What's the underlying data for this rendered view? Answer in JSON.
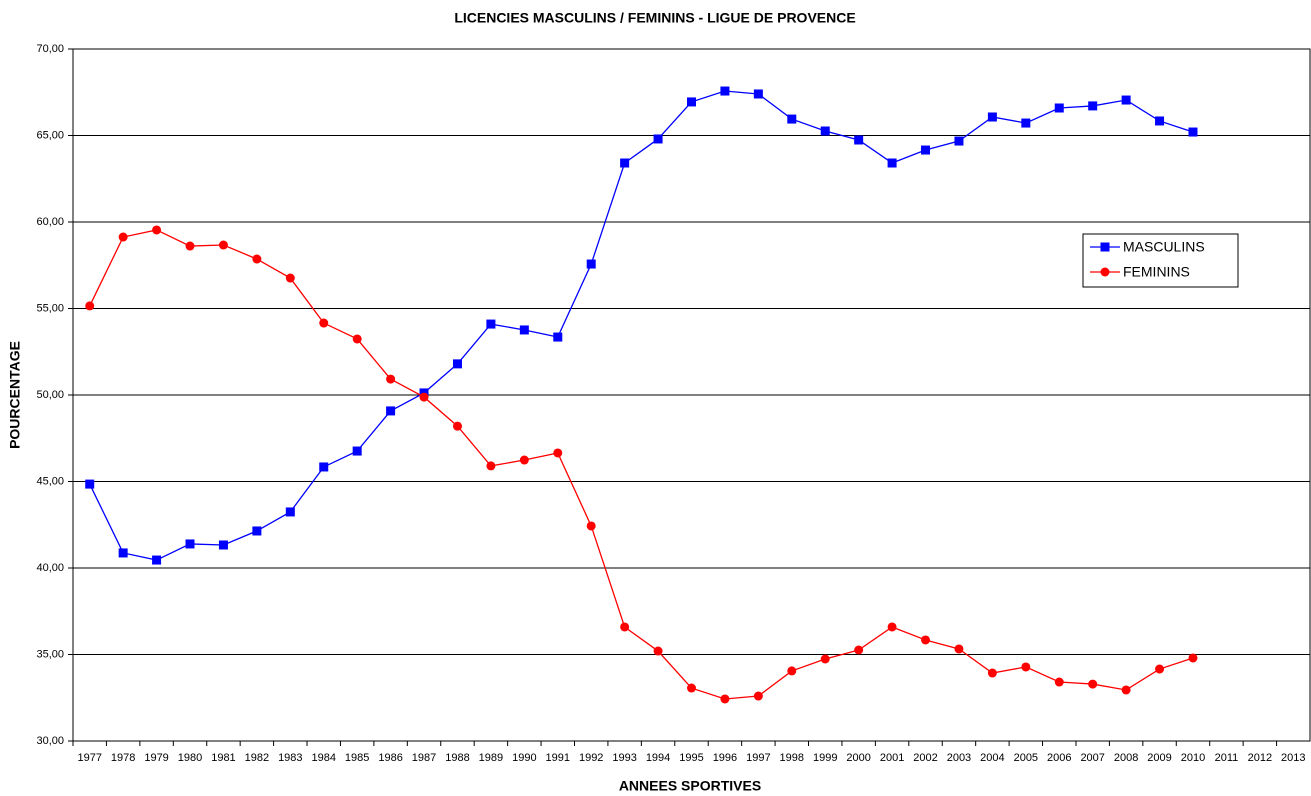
{
  "chart_data": {
    "type": "line",
    "title": "LICENCIES MASCULINS / FEMININS - LIGUE DE PROVENCE",
    "x_label": "ANNEES SPORTIVES",
    "y_label": "POURCENTAGE",
    "categories": [
      "1977",
      "1978",
      "1979",
      "1980",
      "1981",
      "1982",
      "1983",
      "1984",
      "1985",
      "1986",
      "1987",
      "1988",
      "1989",
      "1990",
      "1991",
      "1992",
      "1993",
      "1994",
      "1995",
      "1996",
      "1997",
      "1998",
      "1999",
      "2000",
      "2001",
      "2002",
      "2003",
      "2004",
      "2005",
      "2006",
      "2007",
      "2008",
      "2009",
      "2010",
      "2011",
      "2012",
      "2013"
    ],
    "series": [
      {
        "name": "MASCULINS",
        "color": "#0000ff",
        "marker": "square",
        "values": [
          44.85,
          40.87,
          40.46,
          41.39,
          41.33,
          42.14,
          43.24,
          45.84,
          46.76,
          49.08,
          50.12,
          51.8,
          54.1,
          53.76,
          53.35,
          57.57,
          63.41,
          64.8,
          66.94,
          67.57,
          67.4,
          65.95,
          65.26,
          64.74,
          63.41,
          64.16,
          64.68,
          66.07,
          65.72,
          66.59,
          66.71,
          67.05,
          65.84,
          65.2,
          null,
          null,
          null
        ]
      },
      {
        "name": "FEMININS",
        "color": "#ff0000",
        "marker": "circle",
        "values": [
          55.15,
          59.13,
          59.54,
          58.61,
          58.67,
          57.86,
          56.76,
          54.16,
          53.24,
          50.92,
          49.88,
          48.2,
          45.9,
          46.24,
          46.65,
          42.43,
          36.59,
          35.2,
          33.06,
          32.43,
          32.6,
          34.05,
          34.74,
          35.26,
          36.59,
          35.84,
          35.32,
          33.93,
          34.28,
          33.41,
          33.29,
          32.95,
          34.16,
          34.8,
          null,
          null,
          null
        ]
      }
    ],
    "ylim": [
      30,
      70
    ],
    "yticks": [
      {
        "value": 30,
        "label": "30,00"
      },
      {
        "value": 35,
        "label": "35,00"
      },
      {
        "value": 40,
        "label": "40,00"
      },
      {
        "value": 45,
        "label": "45,00"
      },
      {
        "value": 50,
        "label": "50,00"
      },
      {
        "value": 55,
        "label": "55,00"
      },
      {
        "value": 60,
        "label": "60,00"
      },
      {
        "value": 65,
        "label": "65,00"
      },
      {
        "value": 70,
        "label": "70,00"
      }
    ],
    "grid": true,
    "legend": "right"
  }
}
